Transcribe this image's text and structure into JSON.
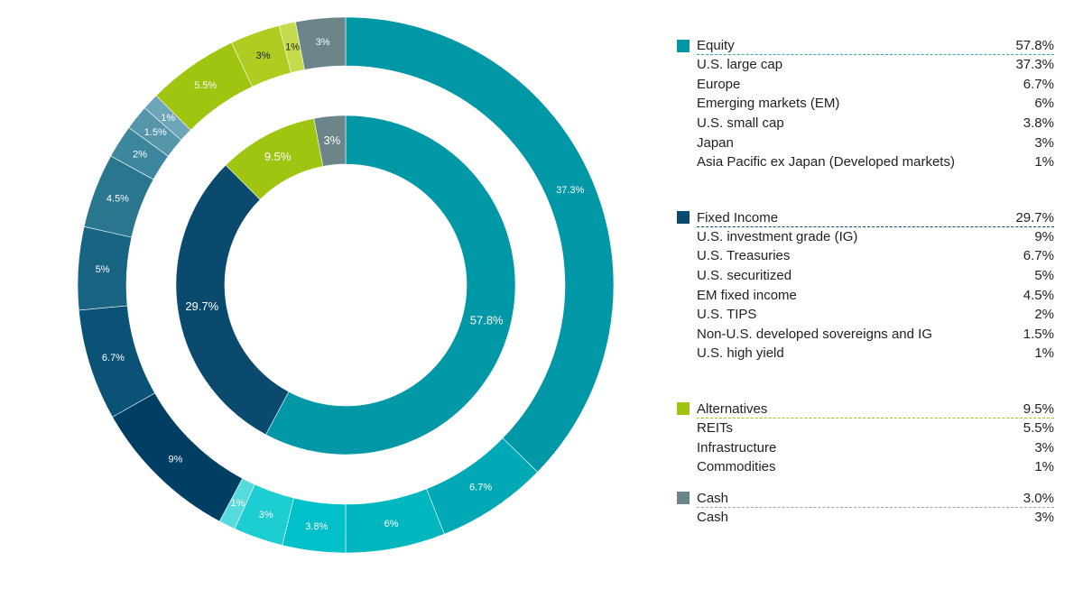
{
  "chart_data": {
    "type": "pie",
    "variant": "nested-donut",
    "title": "",
    "categories": [
      {
        "name": "Equity",
        "total": "57.8%",
        "value": 57.8,
        "color": "#0097a7",
        "items": [
          {
            "name": "U.S. large cap",
            "value": 37.3,
            "label": "37.3%",
            "color": "#0097a7"
          },
          {
            "name": "Europe",
            "value": 6.7,
            "label": "6.7%",
            "color": "#00a9b5"
          },
          {
            "name": "Emerging markets (EM)",
            "value": 6,
            "label": "6%",
            "color": "#00b6bf"
          },
          {
            "name": "U.S. small cap",
            "value": 3.8,
            "label": "3.8%",
            "color": "#00c1c9"
          },
          {
            "name": "Japan",
            "value": 3,
            "label": "3%",
            "color": "#1ccdd2"
          },
          {
            "name": "Asia Pacific ex Japan (Developed markets)",
            "value": 1,
            "label": "1%",
            "color": "#55dbde"
          }
        ]
      },
      {
        "name": "Fixed Income",
        "total": "29.7%",
        "value": 29.7,
        "color": "#0b4a6f",
        "items": [
          {
            "name": "U.S. investment grade (IG)",
            "value": 9,
            "label": "9%",
            "color": "#003f63"
          },
          {
            "name": "U.S. Treasuries",
            "value": 6.7,
            "label": "6.7%",
            "color": "#0b5277"
          },
          {
            "name": "U.S. securitized",
            "value": 5,
            "label": "5%",
            "color": "#186583"
          },
          {
            "name": "EM fixed income",
            "value": 4.5,
            "label": "4.5%",
            "color": "#2a768f"
          },
          {
            "name": "U.S. TIPS",
            "value": 2,
            "label": "2%",
            "color": "#3c879d"
          },
          {
            "name": "Non-U.S. developed sovereigns and IG",
            "value": 1.5,
            "label": "1.5%",
            "color": "#5596ab"
          },
          {
            "name": "U.S. high yield",
            "value": 1,
            "label": "1%",
            "color": "#6da6b8"
          }
        ]
      },
      {
        "name": "Alternatives",
        "total": "9.5%",
        "value": 9.5,
        "color": "#9fc511",
        "items": [
          {
            "name": "REITs",
            "value": 5.5,
            "label": "5.5%",
            "color": "#9fc511"
          },
          {
            "name": "Infrastructure",
            "value": 3,
            "label": "3%",
            "color": "#aecd20"
          },
          {
            "name": "Commodities",
            "value": 1,
            "label": "1%",
            "color": "#c3db4d"
          }
        ]
      },
      {
        "name": "Cash",
        "total": "3.0%",
        "value": 3,
        "inner_label": "3%",
        "color": "#6b858a",
        "items": [
          {
            "name": "Cash",
            "value": 3,
            "label": "3%",
            "color": "#6b858a"
          }
        ]
      }
    ],
    "inner_labels": [
      "57.8%",
      "29.7%",
      "9.5%",
      "3%"
    ],
    "legend_position": "right"
  }
}
